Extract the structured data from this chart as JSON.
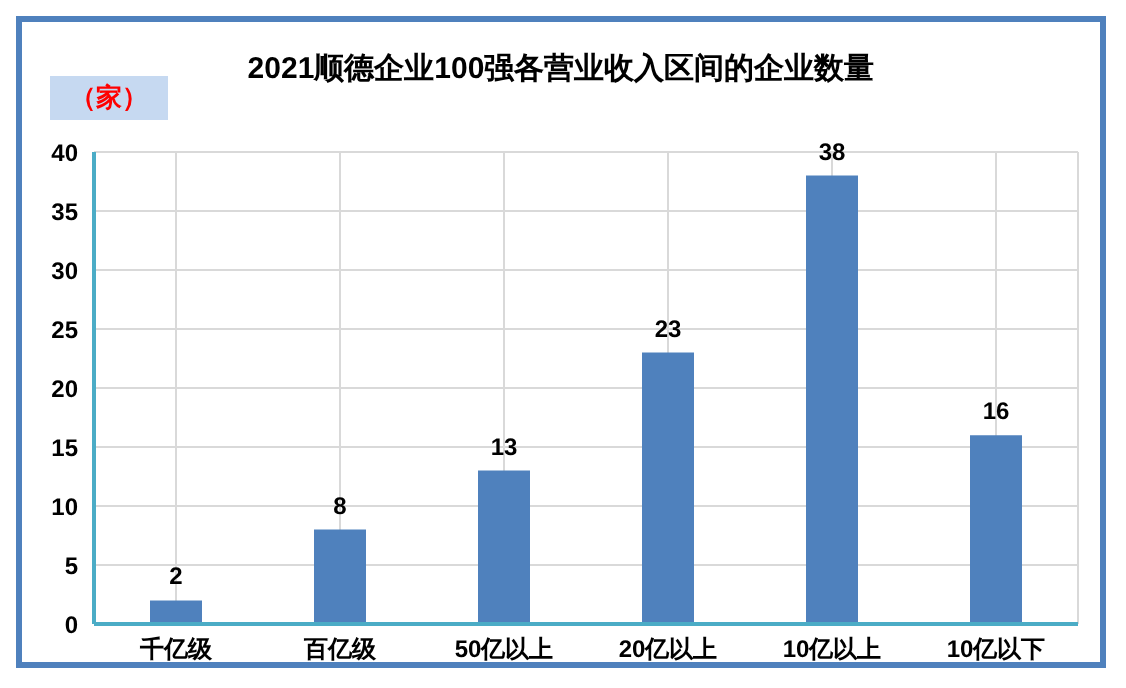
{
  "chart_data": {
    "type": "bar",
    "title": "2021顺德企业100强各营业收入区间的企业数量",
    "ylabel": "（家）",
    "categories": [
      "千亿级",
      "百亿级",
      "50亿以上",
      "20亿以上",
      "10亿以上",
      "10亿以下"
    ],
    "values": [
      2,
      8,
      13,
      23,
      38,
      16
    ],
    "color": "#4f81bd",
    "ylim": [
      0,
      40
    ],
    "yticks": [
      0,
      5,
      10,
      15,
      20,
      25,
      30,
      35,
      40
    ],
    "grid": true,
    "data_labels": true
  }
}
